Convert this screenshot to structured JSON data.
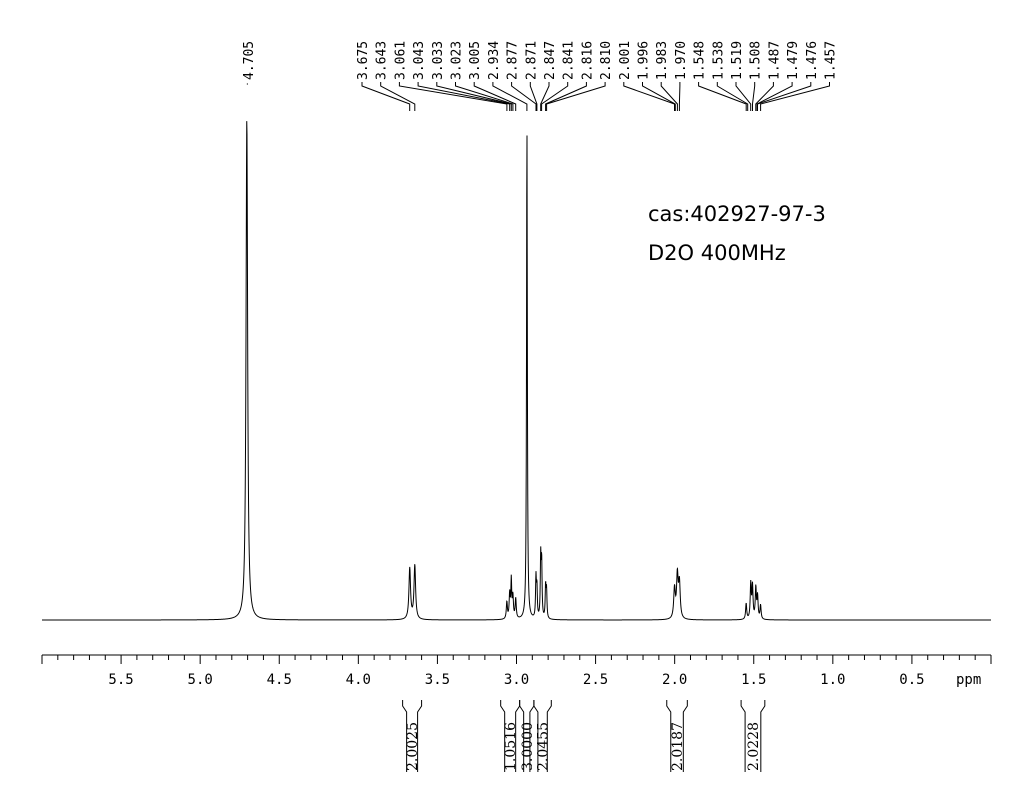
{
  "chart_data": {
    "type": "line",
    "title": "",
    "xlabel": "ppm",
    "ylabel": "",
    "xlim": [
      6.0,
      0.0
    ],
    "x_axis_reversed": true,
    "grid": false,
    "x_ticks": [
      "5.5",
      "5.0",
      "4.5",
      "4.0",
      "3.5",
      "3.0",
      "2.5",
      "2.0",
      "1.5",
      "1.0",
      "0.5"
    ],
    "x_tick_values": [
      5.5,
      5.0,
      4.5,
      4.0,
      3.5,
      3.0,
      2.5,
      2.0,
      1.5,
      1.0,
      0.5
    ],
    "annotations": [
      "cas:402927-97-3",
      "D2O 400MHz"
    ],
    "peak_labels": [
      {
        "value": "4.705",
        "ppm": 4.705
      },
      {
        "value": "3.675",
        "ppm": 3.675
      },
      {
        "value": "3.643",
        "ppm": 3.643
      },
      {
        "value": "3.061",
        "ppm": 3.061
      },
      {
        "value": "3.043",
        "ppm": 3.043
      },
      {
        "value": "3.033",
        "ppm": 3.033
      },
      {
        "value": "3.023",
        "ppm": 3.023
      },
      {
        "value": "3.005",
        "ppm": 3.005
      },
      {
        "value": "2.934",
        "ppm": 2.934
      },
      {
        "value": "2.877",
        "ppm": 2.877
      },
      {
        "value": "2.871",
        "ppm": 2.871
      },
      {
        "value": "2.847",
        "ppm": 2.847
      },
      {
        "value": "2.841",
        "ppm": 2.841
      },
      {
        "value": "2.816",
        "ppm": 2.816
      },
      {
        "value": "2.810",
        "ppm": 2.81
      },
      {
        "value": "2.001",
        "ppm": 2.001
      },
      {
        "value": "1.996",
        "ppm": 1.996
      },
      {
        "value": "1.983",
        "ppm": 1.983
      },
      {
        "value": "1.970",
        "ppm": 1.97
      },
      {
        "value": "1.548",
        "ppm": 1.548
      },
      {
        "value": "1.538",
        "ppm": 1.538
      },
      {
        "value": "1.519",
        "ppm": 1.519
      },
      {
        "value": "1.508",
        "ppm": 1.508
      },
      {
        "value": "1.487",
        "ppm": 1.487
      },
      {
        "value": "1.479",
        "ppm": 1.479
      },
      {
        "value": "1.476",
        "ppm": 1.476
      },
      {
        "value": "1.457",
        "ppm": 1.457
      }
    ],
    "integrals": [
      {
        "value": "2.0025",
        "from": 3.72,
        "to": 3.6
      },
      {
        "value": "1.0516",
        "from": 3.1,
        "to": 2.98
      },
      {
        "value": "3.0000",
        "from": 2.98,
        "to": 2.89
      },
      {
        "value": "2.0455",
        "from": 2.89,
        "to": 2.78
      },
      {
        "value": "2.0187",
        "from": 2.05,
        "to": 1.92
      },
      {
        "value": "2.0228",
        "from": 1.58,
        "to": 1.43
      }
    ],
    "signals": [
      {
        "ppm": 4.705,
        "height": 1.0,
        "width": 0.006
      },
      {
        "ppm": 3.675,
        "height": 0.102,
        "width": 0.006
      },
      {
        "ppm": 3.643,
        "height": 0.108,
        "width": 0.006
      },
      {
        "ppm": 3.061,
        "height": 0.034,
        "width": 0.004
      },
      {
        "ppm": 3.043,
        "height": 0.05,
        "width": 0.004
      },
      {
        "ppm": 3.033,
        "height": 0.075,
        "width": 0.003
      },
      {
        "ppm": 3.023,
        "height": 0.045,
        "width": 0.004
      },
      {
        "ppm": 3.005,
        "height": 0.04,
        "width": 0.004
      },
      {
        "ppm": 2.934,
        "height": 0.98,
        "width": 0.003
      },
      {
        "ppm": 2.877,
        "height": 0.08,
        "width": 0.003
      },
      {
        "ppm": 2.871,
        "height": 0.06,
        "width": 0.003
      },
      {
        "ppm": 2.847,
        "height": 0.12,
        "width": 0.003
      },
      {
        "ppm": 2.841,
        "height": 0.11,
        "width": 0.003
      },
      {
        "ppm": 2.816,
        "height": 0.065,
        "width": 0.003
      },
      {
        "ppm": 2.81,
        "height": 0.055,
        "width": 0.003
      },
      {
        "ppm": 2.001,
        "height": 0.06,
        "width": 0.006
      },
      {
        "ppm": 1.983,
        "height": 0.085,
        "width": 0.006
      },
      {
        "ppm": 1.97,
        "height": 0.07,
        "width": 0.006
      },
      {
        "ppm": 1.548,
        "height": 0.032,
        "width": 0.004
      },
      {
        "ppm": 1.519,
        "height": 0.07,
        "width": 0.004
      },
      {
        "ppm": 1.508,
        "height": 0.065,
        "width": 0.004
      },
      {
        "ppm": 1.487,
        "height": 0.062,
        "width": 0.004
      },
      {
        "ppm": 1.476,
        "height": 0.045,
        "width": 0.004
      },
      {
        "ppm": 1.457,
        "height": 0.028,
        "width": 0.004
      }
    ]
  }
}
